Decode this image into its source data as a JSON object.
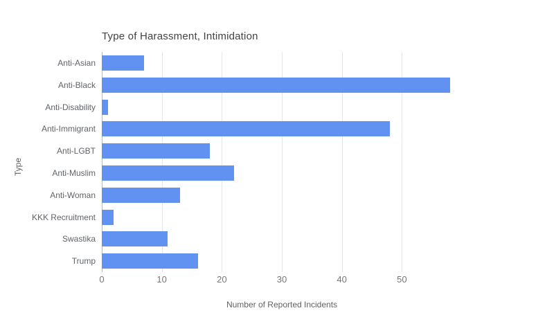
{
  "chart_data": {
    "type": "bar",
    "orientation": "horizontal",
    "title": "Type of Harassment, Intimidation",
    "xlabel": "Number of Reported Incidents",
    "ylabel": "Type",
    "categories": [
      "Anti-Asian",
      "Anti-Black",
      "Anti-Disability",
      "Anti-Immigrant",
      "Anti-LGBT",
      "Anti-Muslim",
      "Anti-Woman",
      "KKK Recruitment",
      "Swastika",
      "Trump"
    ],
    "values": [
      7,
      58,
      1,
      48,
      18,
      22,
      13,
      2,
      11,
      16
    ],
    "xlim": [
      0,
      60
    ],
    "xticks": [
      0,
      10,
      20,
      30,
      40,
      50
    ],
    "grid": "vertical-gridlines-on",
    "legend": "none"
  },
  "colors": {
    "background": "#ffffff",
    "bar": "#6192f1",
    "gridline": "#e6e6e6",
    "axis_line": "#b7b7b7",
    "title_text": "#424242",
    "category_text": "#5f6368",
    "tick_text": "#757575",
    "axis_title_text": "#616161"
  }
}
